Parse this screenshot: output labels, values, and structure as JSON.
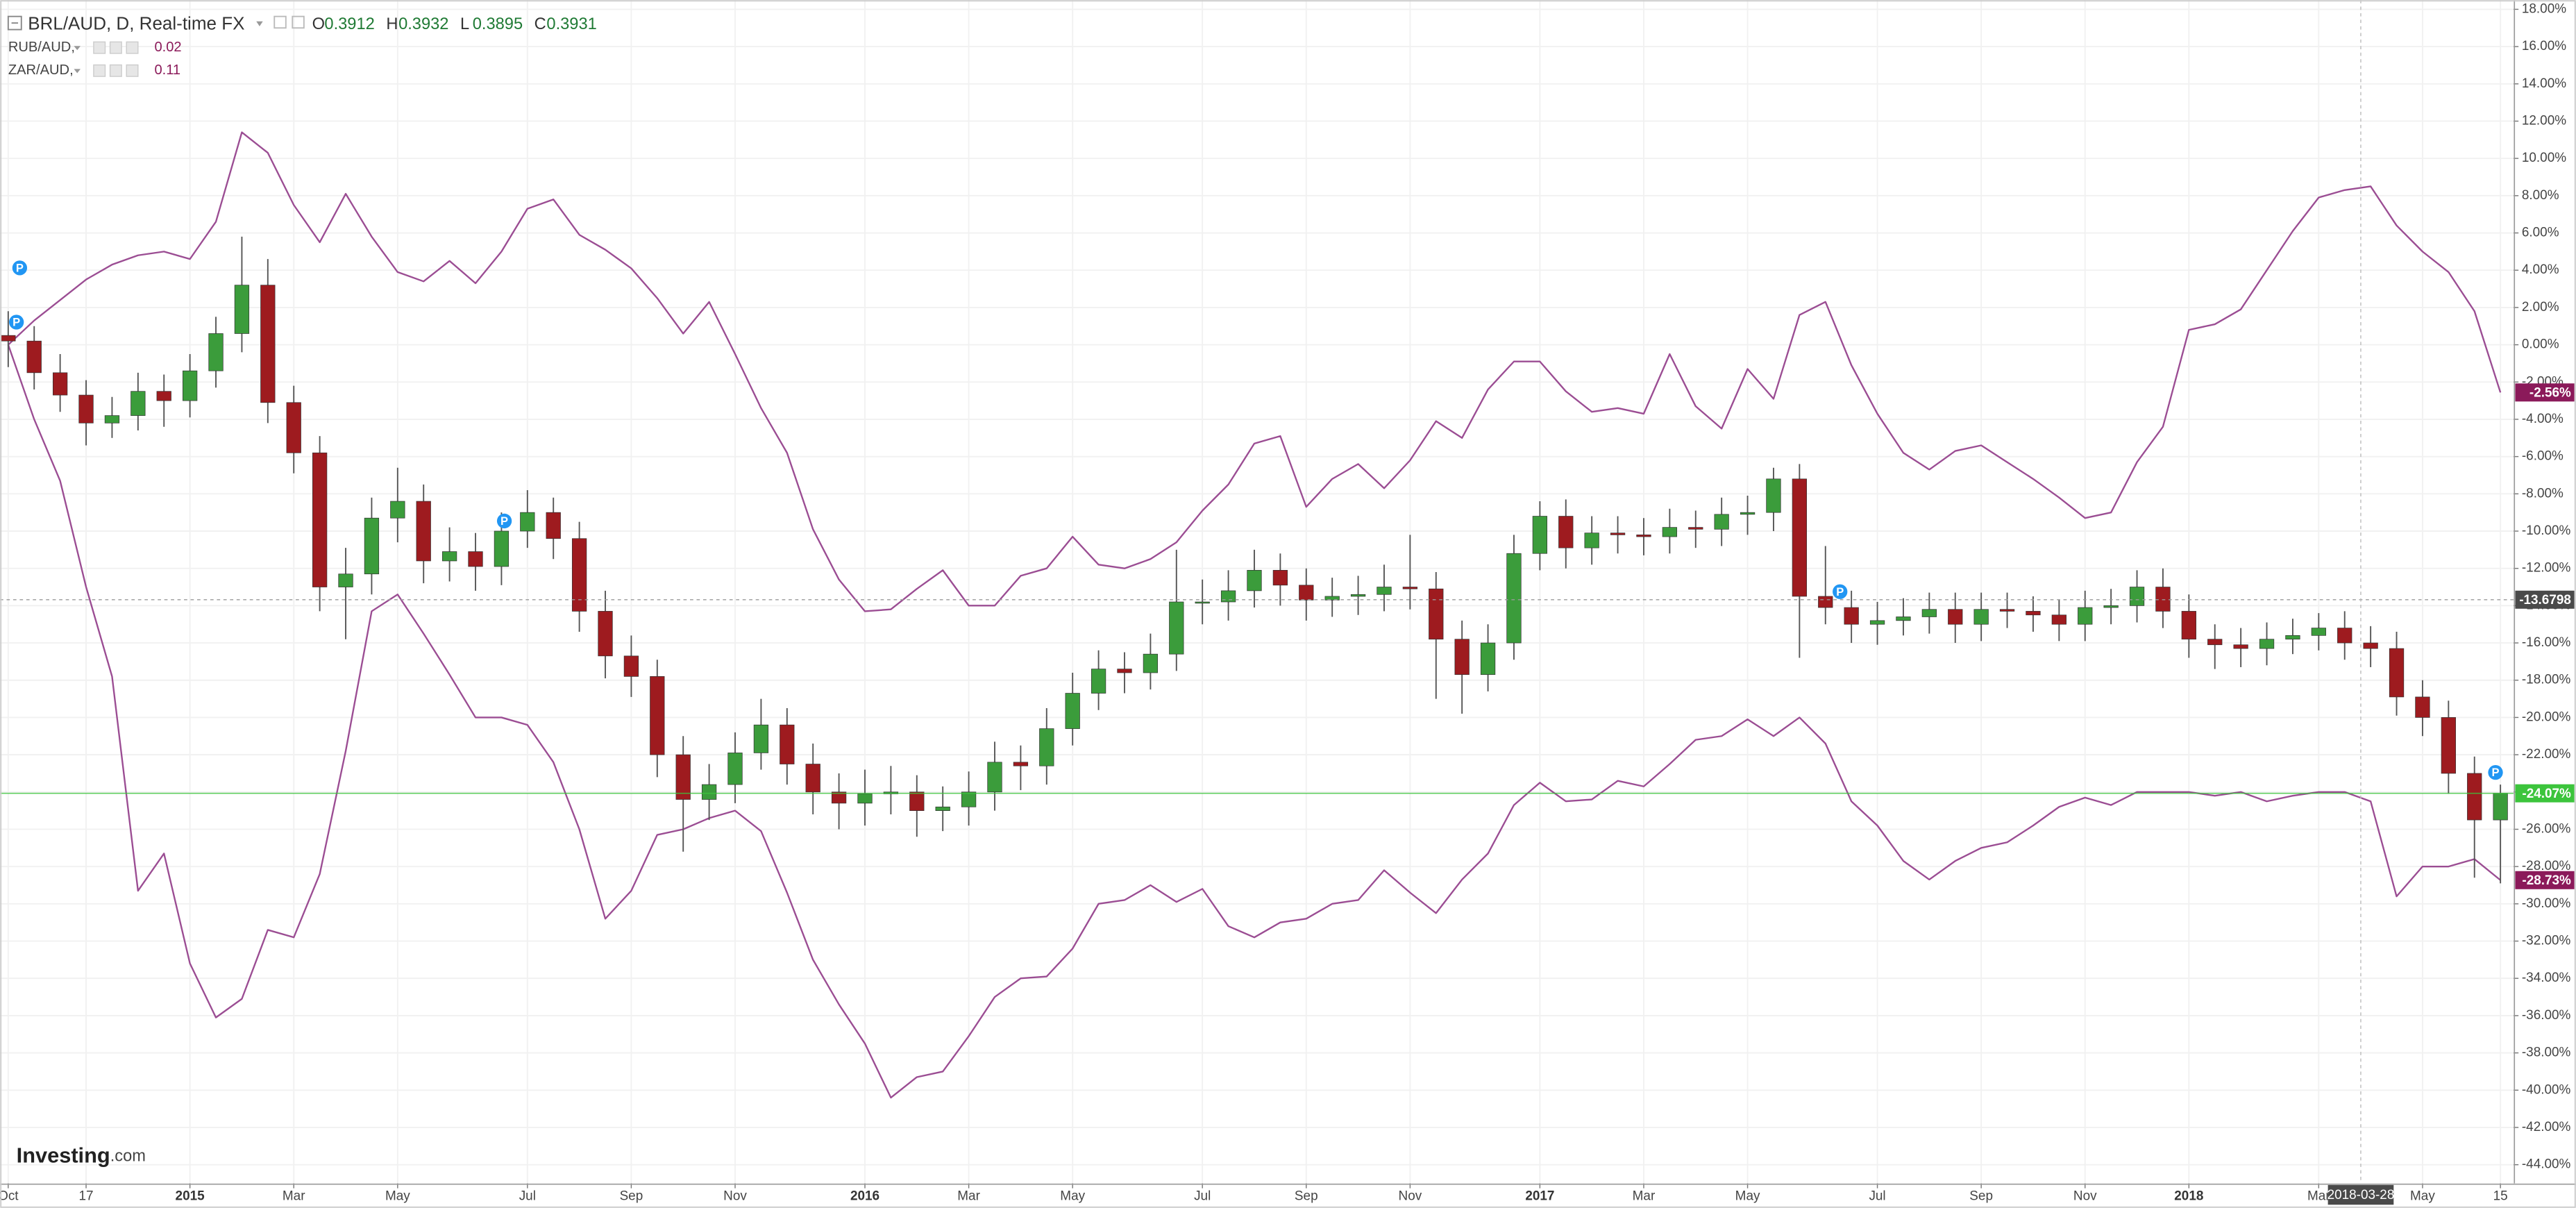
{
  "chart_data": {
    "type": "candlestick",
    "title": "BRL/AUD, D, Real-time FX",
    "ohlc_legend": [
      {
        "label": "O",
        "value": 0.3912
      },
      {
        "label": "H",
        "value": 0.3932
      },
      {
        "label": "L",
        "value": 0.3895
      },
      {
        "label": "C",
        "value": 0.3931
      }
    ],
    "pin_label": "P",
    "logo": {
      "brand": "Investing",
      "suffix": ".com"
    },
    "up_color": "#3b9c3b",
    "down_color": "#9e1b1f",
    "wick_color": "#555555",
    "grid": true,
    "ylim": [
      -45,
      18.5
    ],
    "yticks": [
      {
        "value": 18,
        "label": "18.00%"
      },
      {
        "value": 16,
        "label": "16.00%"
      },
      {
        "value": 14,
        "label": "14.00%"
      },
      {
        "value": 12,
        "label": "12.00%"
      },
      {
        "value": 10,
        "label": "10.00%"
      },
      {
        "value": 8,
        "label": "8.00%"
      },
      {
        "value": 6,
        "label": "6.00%"
      },
      {
        "value": 4,
        "label": "4.00%"
      },
      {
        "value": 2,
        "label": "2.00%"
      },
      {
        "value": 0,
        "label": "0.00%"
      },
      {
        "value": -2,
        "label": "-2.00%"
      },
      {
        "value": -4,
        "label": "-4.00%"
      },
      {
        "value": -6,
        "label": "-6.00%"
      },
      {
        "value": -8,
        "label": "-8.00%"
      },
      {
        "value": -10,
        "label": "-10.00%"
      },
      {
        "value": -12,
        "label": "-12.00%"
      },
      {
        "value": -14,
        "label": "-14.00%"
      },
      {
        "value": -16,
        "label": "-16.00%"
      },
      {
        "value": -18,
        "label": "-18.00%"
      },
      {
        "value": -20,
        "label": "-20.00%"
      },
      {
        "value": -22,
        "label": "-22.00%"
      },
      {
        "value": -24,
        "label": "-24.00%"
      },
      {
        "value": -26,
        "label": "-26.00%"
      },
      {
        "value": -28,
        "label": "-28.00%"
      },
      {
        "value": -30,
        "label": "-30.00%"
      },
      {
        "value": -32,
        "label": "-32.00%"
      },
      {
        "value": -34,
        "label": "-34.00%"
      },
      {
        "value": -36,
        "label": "-36.00%"
      },
      {
        "value": -38,
        "label": "-38.00%"
      },
      {
        "value": -40,
        "label": "-40.00%"
      },
      {
        "value": -42,
        "label": "-42.00%"
      },
      {
        "value": -44,
        "label": "-44.00%"
      }
    ],
    "categories": [
      "Oct",
      null,
      null,
      "17",
      null,
      null,
      null,
      "2015",
      null,
      null,
      null,
      "Mar",
      null,
      null,
      null,
      "May",
      null,
      null,
      null,
      null,
      "Jul",
      null,
      null,
      null,
      "Sep",
      null,
      null,
      null,
      "Nov",
      null,
      null,
      null,
      null,
      "2016",
      null,
      null,
      null,
      "Mar",
      null,
      null,
      null,
      "May",
      null,
      null,
      null,
      null,
      "Jul",
      null,
      null,
      null,
      "Sep",
      null,
      null,
      null,
      "Nov",
      null,
      null,
      null,
      null,
      "2017",
      null,
      null,
      null,
      "Mar",
      null,
      null,
      null,
      "May",
      null,
      null,
      null,
      null,
      "Jul",
      null,
      null,
      null,
      "Sep",
      null,
      null,
      null,
      "Nov",
      null,
      null,
      null,
      "2018",
      null,
      null,
      null,
      null,
      "Mar",
      null,
      null,
      null,
      "May",
      null,
      null,
      "15"
    ],
    "ohlc": [
      [
        0.5,
        1.8,
        -1.2,
        0.2
      ],
      [
        0.2,
        1.0,
        -2.4,
        -1.5
      ],
      [
        -1.5,
        -0.5,
        -3.6,
        -2.7
      ],
      [
        -2.7,
        -1.9,
        -5.4,
        -4.2
      ],
      [
        -4.2,
        -2.8,
        -5.0,
        -3.8
      ],
      [
        -3.8,
        -1.5,
        -4.6,
        -2.5
      ],
      [
        -2.5,
        -1.6,
        -4.4,
        -3.0
      ],
      [
        -3.0,
        -0.5,
        -3.9,
        -1.4
      ],
      [
        -1.4,
        1.5,
        -2.3,
        0.6
      ],
      [
        0.6,
        5.8,
        -0.4,
        3.2
      ],
      [
        3.2,
        4.6,
        -4.2,
        -3.1
      ],
      [
        -3.1,
        -2.2,
        -6.9,
        -5.8
      ],
      [
        -5.8,
        -4.9,
        -14.3,
        -13.0
      ],
      [
        -13.0,
        -10.9,
        -15.8,
        -12.3
      ],
      [
        -12.3,
        -8.2,
        -13.4,
        -9.3
      ],
      [
        -9.3,
        -6.6,
        -10.6,
        -8.4
      ],
      [
        -8.4,
        -7.5,
        -12.8,
        -11.6
      ],
      [
        -11.6,
        -9.8,
        -12.7,
        -11.1
      ],
      [
        -11.1,
        -10.1,
        -13.2,
        -11.9
      ],
      [
        -11.9,
        -9.0,
        -12.9,
        -10.0
      ],
      [
        -10.0,
        -7.8,
        -10.9,
        -9.0
      ],
      [
        -9.0,
        -8.2,
        -11.5,
        -10.4
      ],
      [
        -10.4,
        -9.5,
        -15.4,
        -14.3
      ],
      [
        -14.3,
        -13.2,
        -17.9,
        -16.7
      ],
      [
        -16.7,
        -15.6,
        -18.9,
        -17.8
      ],
      [
        -17.8,
        -16.9,
        -23.2,
        -22.0
      ],
      [
        -22.0,
        -21.0,
        -27.2,
        -24.4
      ],
      [
        -24.4,
        -22.5,
        -25.5,
        -23.6
      ],
      [
        -23.6,
        -20.8,
        -24.6,
        -21.9
      ],
      [
        -21.9,
        -19.0,
        -22.8,
        -20.4
      ],
      [
        -20.4,
        -19.5,
        -23.6,
        -22.5
      ],
      [
        -22.5,
        -21.4,
        -25.2,
        -24.0
      ],
      [
        -24.0,
        -23.0,
        -26.0,
        -24.6
      ],
      [
        -24.6,
        -22.8,
        -25.8,
        -24.1
      ],
      [
        -24.1,
        -22.6,
        -25.2,
        -24.0
      ],
      [
        -24.0,
        -23.1,
        -26.4,
        -25.0
      ],
      [
        -25.0,
        -23.7,
        -26.1,
        -24.8
      ],
      [
        -24.8,
        -22.9,
        -25.8,
        -24.0
      ],
      [
        -24.0,
        -21.3,
        -25.0,
        -22.4
      ],
      [
        -22.4,
        -21.5,
        -23.9,
        -22.6
      ],
      [
        -22.6,
        -19.5,
        -23.6,
        -20.6
      ],
      [
        -20.6,
        -17.6,
        -21.5,
        -18.7
      ],
      [
        -18.7,
        -16.4,
        -19.6,
        -17.4
      ],
      [
        -17.4,
        -16.5,
        -18.7,
        -17.6
      ],
      [
        -17.6,
        -15.5,
        -18.5,
        -16.6
      ],
      [
        -16.6,
        -11.0,
        -17.5,
        -13.8
      ],
      [
        -13.8,
        -12.6,
        -15.0,
        -13.8
      ],
      [
        -13.8,
        -12.1,
        -14.8,
        -13.2
      ],
      [
        -13.2,
        -11.0,
        -14.1,
        -12.1
      ],
      [
        -12.1,
        -11.2,
        -14.0,
        -12.9
      ],
      [
        -12.9,
        -12.0,
        -14.8,
        -13.7
      ],
      [
        -13.7,
        -12.5,
        -14.6,
        -13.5
      ],
      [
        -13.5,
        -12.4,
        -14.5,
        -13.4
      ],
      [
        -13.4,
        -11.8,
        -14.3,
        -13.0
      ],
      [
        -13.0,
        -10.2,
        -14.2,
        -13.1
      ],
      [
        -13.1,
        -12.2,
        -19.0,
        -15.8
      ],
      [
        -15.8,
        -14.8,
        -19.8,
        -17.7
      ],
      [
        -17.7,
        -15.0,
        -18.6,
        -16.0
      ],
      [
        -16.0,
        -10.2,
        -16.9,
        -11.2
      ],
      [
        -11.2,
        -8.4,
        -12.1,
        -9.2
      ],
      [
        -9.2,
        -8.3,
        -12.0,
        -10.9
      ],
      [
        -10.9,
        -9.2,
        -11.8,
        -10.1
      ],
      [
        -10.1,
        -9.2,
        -11.2,
        -10.2
      ],
      [
        -10.2,
        -9.3,
        -11.3,
        -10.3
      ],
      [
        -10.3,
        -8.8,
        -11.2,
        -9.8
      ],
      [
        -9.8,
        -8.9,
        -10.9,
        -9.9
      ],
      [
        -9.9,
        -8.2,
        -10.8,
        -9.1
      ],
      [
        -9.1,
        -8.1,
        -10.2,
        -9.0
      ],
      [
        -9.0,
        -6.6,
        -10.0,
        -7.2
      ],
      [
        -7.2,
        -6.4,
        -16.8,
        -13.5
      ],
      [
        -13.5,
        -10.8,
        -15.0,
        -14.1
      ],
      [
        -14.1,
        -13.2,
        -16.0,
        -15.0
      ],
      [
        -15.0,
        -13.8,
        -16.1,
        -14.8
      ],
      [
        -14.8,
        -13.6,
        -15.6,
        -14.6
      ],
      [
        -14.6,
        -13.3,
        -15.5,
        -14.2
      ],
      [
        -14.2,
        -13.3,
        -16.0,
        -15.0
      ],
      [
        -15.0,
        -13.3,
        -15.9,
        -14.2
      ],
      [
        -14.2,
        -13.3,
        -15.2,
        -14.3
      ],
      [
        -14.3,
        -13.5,
        -15.4,
        -14.5
      ],
      [
        -14.5,
        -13.7,
        -15.9,
        -15.0
      ],
      [
        -15.0,
        -13.2,
        -15.9,
        -14.1
      ],
      [
        -14.1,
        -13.1,
        -15.0,
        -14.0
      ],
      [
        -14.0,
        -12.1,
        -14.9,
        -13.0
      ],
      [
        -13.0,
        -12.0,
        -15.2,
        -14.3
      ],
      [
        -14.3,
        -13.4,
        -16.8,
        -15.8
      ],
      [
        -15.8,
        -15.0,
        -17.4,
        -16.1
      ],
      [
        -16.1,
        -15.2,
        -17.3,
        -16.3
      ],
      [
        -16.3,
        -14.9,
        -17.2,
        -15.8
      ],
      [
        -15.8,
        -14.7,
        -16.6,
        -15.6
      ],
      [
        -15.6,
        -14.4,
        -16.4,
        -15.2
      ],
      [
        -15.2,
        -14.3,
        -16.9,
        -16.0
      ],
      [
        -16.0,
        -15.1,
        -17.3,
        -16.3
      ],
      [
        -16.3,
        -15.4,
        -19.9,
        -18.9
      ],
      [
        -18.9,
        -18.0,
        -21.0,
        -20.0
      ],
      [
        -20.0,
        -19.1,
        -24.1,
        -23.0
      ],
      [
        -23.0,
        -22.1,
        -28.6,
        -25.5
      ],
      [
        -25.5,
        -23.6,
        -28.9,
        -24.07
      ]
    ],
    "last_label": "-24.07%",
    "last_color": "#3cc43c",
    "series": [
      {
        "name": "RUB/AUD,",
        "type": "line",
        "color": "#9b4d93",
        "price": 0.02,
        "last_label": "-28.73%",
        "label_color": "#8b1a5a",
        "values": [
          0.0,
          -4.0,
          -7.3,
          -13.0,
          -17.8,
          -29.3,
          -27.3,
          -33.2,
          -36.1,
          -35.1,
          -31.4,
          -31.8,
          -28.4,
          -21.8,
          -14.3,
          -13.4,
          -15.5,
          -17.7,
          -20.0,
          -20.0,
          -20.4,
          -22.4,
          -26.0,
          -30.8,
          -29.3,
          -26.3,
          -26.0,
          -25.4,
          -25.0,
          -26.1,
          -29.4,
          -33.0,
          -35.4,
          -37.5,
          -40.4,
          -39.3,
          -39.0,
          -37.1,
          -35.0,
          -34.0,
          -33.9,
          -32.4,
          -30.0,
          -29.8,
          -29.0,
          -29.9,
          -29.2,
          -31.2,
          -31.8,
          -31.0,
          -30.8,
          -30.0,
          -29.8,
          -28.2,
          -29.4,
          -30.5,
          -28.7,
          -27.3,
          -24.7,
          -23.5,
          -24.5,
          -24.4,
          -23.4,
          -23.7,
          -22.5,
          -21.2,
          -21.0,
          -20.1,
          -21.0,
          -20.0,
          -21.4,
          -24.5,
          -25.8,
          -27.7,
          -28.7,
          -27.7,
          -27.0,
          -26.7,
          -25.8,
          -24.8,
          -24.3,
          -24.7,
          -24.0,
          -24.0,
          -24.0,
          -24.2,
          -24.0,
          -24.5,
          -24.2,
          -24.0,
          -24.0,
          -24.5,
          -29.6,
          -28.0,
          -28.0,
          -27.6,
          -28.73
        ]
      },
      {
        "name": "ZAR/AUD,",
        "type": "line",
        "color": "#9b4d93",
        "price": 0.11,
        "last_label": "-2.56%",
        "label_color": "#8b1a5a",
        "values": [
          0.0,
          1.3,
          2.4,
          3.5,
          4.3,
          4.8,
          5.0,
          4.6,
          6.6,
          11.4,
          10.3,
          7.5,
          5.5,
          8.1,
          5.8,
          3.9,
          3.4,
          4.5,
          3.3,
          5.0,
          7.3,
          7.8,
          5.9,
          5.1,
          4.1,
          2.5,
          0.6,
          2.3,
          -0.5,
          -3.4,
          -5.8,
          -9.9,
          -12.6,
          -14.3,
          -14.2,
          -13.1,
          -12.1,
          -14.0,
          -14.0,
          -12.4,
          -12.0,
          -10.3,
          -11.8,
          -12.0,
          -11.5,
          -10.6,
          -8.9,
          -7.5,
          -5.3,
          -4.9,
          -8.7,
          -7.2,
          -6.4,
          -7.7,
          -6.2,
          -4.1,
          -5.0,
          -2.4,
          -0.9,
          -0.9,
          -2.5,
          -3.6,
          -3.4,
          -3.7,
          -0.5,
          -3.3,
          -4.5,
          -1.3,
          -2.9,
          1.6,
          2.3,
          -1.1,
          -3.7,
          -5.8,
          -6.7,
          -5.7,
          -5.4,
          -6.3,
          -7.2,
          -8.2,
          -9.3,
          -9.0,
          -6.3,
          -4.4,
          0.8,
          1.1,
          1.9,
          4.0,
          6.1,
          7.9,
          8.3,
          8.5,
          6.4,
          5.0,
          3.9,
          1.8,
          -2.56
        ]
      }
    ],
    "crosshair": {
      "date": "2018-03-28",
      "value": -13.6798
    }
  }
}
